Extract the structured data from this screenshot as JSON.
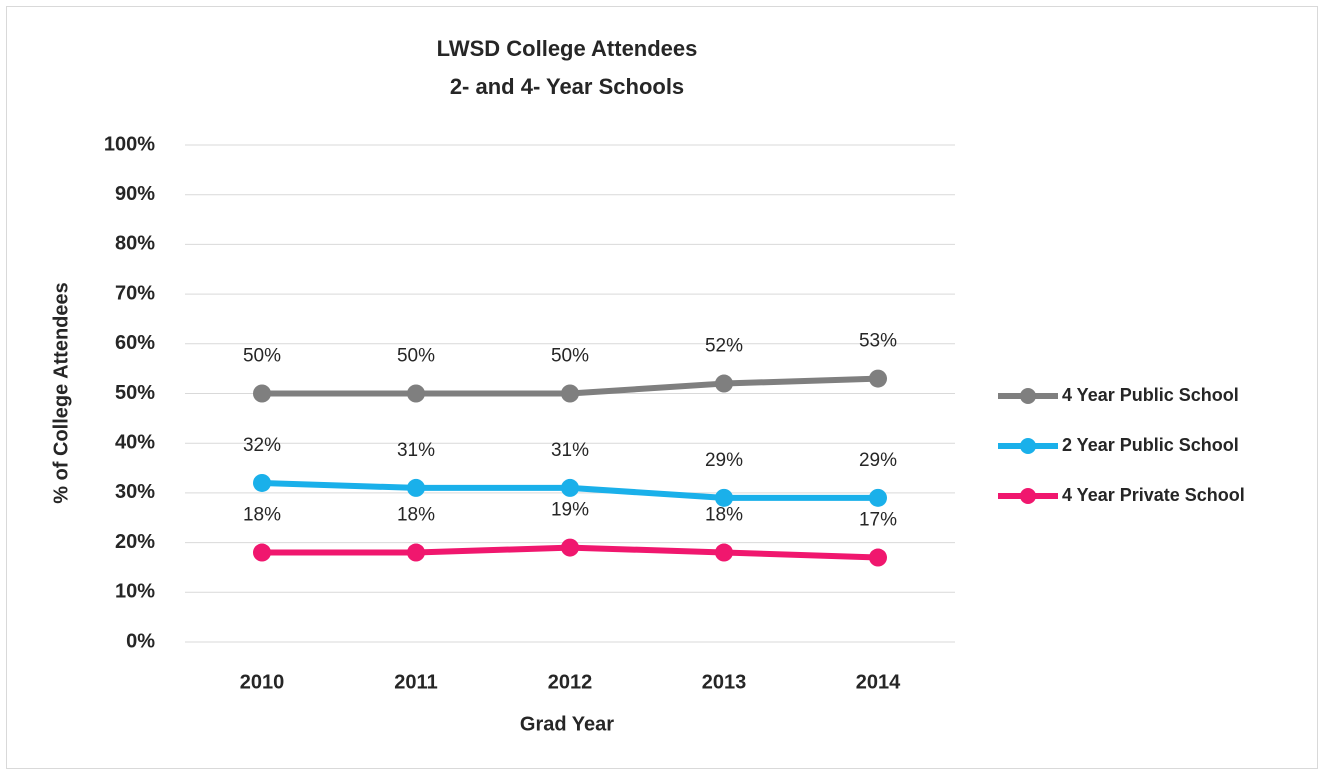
{
  "chart_data": {
    "type": "line",
    "title": "LWSD College Attendees",
    "subtitle": "2- and 4- Year Schools",
    "x_label": "Grad Year",
    "y_label": "% of College Attendees",
    "categories": [
      "2010",
      "2011",
      "2012",
      "2013",
      "2014"
    ],
    "series": [
      {
        "name": "4 Year Public School",
        "color": "#7f7f7f",
        "values": [
          50,
          50,
          50,
          52,
          53
        ],
        "value_labels": [
          "50%",
          "50%",
          "50%",
          "52%",
          "53%"
        ]
      },
      {
        "name": "2 Year Public School",
        "color": "#1ab0ea",
        "values": [
          32,
          31,
          31,
          29,
          29
        ],
        "value_labels": [
          "32%",
          "31%",
          "31%",
          "29%",
          "29%"
        ]
      },
      {
        "name": "4 Year Private School",
        "color": "#f0176e",
        "values": [
          18,
          18,
          19,
          18,
          17
        ],
        "value_labels": [
          "18%",
          "18%",
          "19%",
          "18%",
          "17%"
        ]
      }
    ],
    "ylim": [
      0,
      100
    ],
    "yticks": [
      {
        "value": 0,
        "label": "0%"
      },
      {
        "value": 10,
        "label": "10%"
      },
      {
        "value": 20,
        "label": "20%"
      },
      {
        "value": 30,
        "label": "30%"
      },
      {
        "value": 40,
        "label": "40%"
      },
      {
        "value": 50,
        "label": "50%"
      },
      {
        "value": 60,
        "label": "60%"
      },
      {
        "value": 70,
        "label": "70%"
      },
      {
        "value": 80,
        "label": "80%"
      },
      {
        "value": 90,
        "label": "90%"
      },
      {
        "value": 100,
        "label": "100%"
      }
    ],
    "grid": true,
    "legend": "right"
  }
}
